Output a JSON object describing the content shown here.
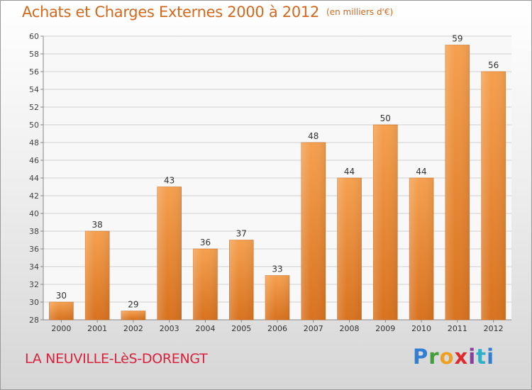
{
  "header": {
    "title": "Achats et Charges Externes 2000 à 2012",
    "subtitle": "(en milliers d'€)"
  },
  "footer": {
    "location": "LA NEUVILLE-LèS-DORENGT",
    "logo_text": "Proxiti"
  },
  "colors": {
    "bar_top": "#f5a04f",
    "bar_bottom": "#d8721f",
    "accent": "#d2691e",
    "location": "#d9223c"
  },
  "chart_data": {
    "type": "bar",
    "title": "Achats et Charges Externes 2000 à 2012",
    "subtitle": "(en milliers d'€)",
    "xlabel": "",
    "ylabel": "",
    "categories": [
      "2000",
      "2001",
      "2002",
      "2003",
      "2004",
      "2005",
      "2006",
      "2007",
      "2008",
      "2009",
      "2010",
      "2011",
      "2012"
    ],
    "values": [
      30,
      38,
      29,
      43,
      36,
      37,
      33,
      48,
      44,
      50,
      44,
      59,
      56
    ],
    "ylim": [
      28,
      60
    ],
    "yticks": [
      28,
      30,
      32,
      34,
      36,
      38,
      40,
      42,
      44,
      46,
      48,
      50,
      52,
      54,
      56,
      58,
      60
    ],
    "grid": true,
    "legend": "none"
  }
}
